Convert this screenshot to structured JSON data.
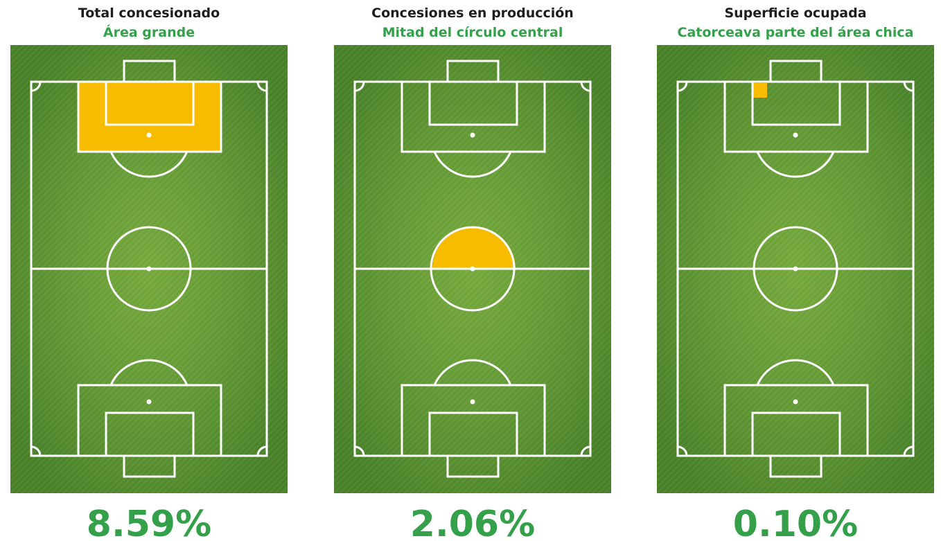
{
  "panels": [
    {
      "title": "Total concesionado",
      "subtitle": "Área grande",
      "value": "8.59%"
    },
    {
      "title": "Concesiones en producción",
      "subtitle": "Mitad del círculo central",
      "value": "2.06%"
    },
    {
      "title": "Superficie ocupada",
      "subtitle": "Catorceava parte del área chica",
      "value": "0.10%"
    }
  ]
}
